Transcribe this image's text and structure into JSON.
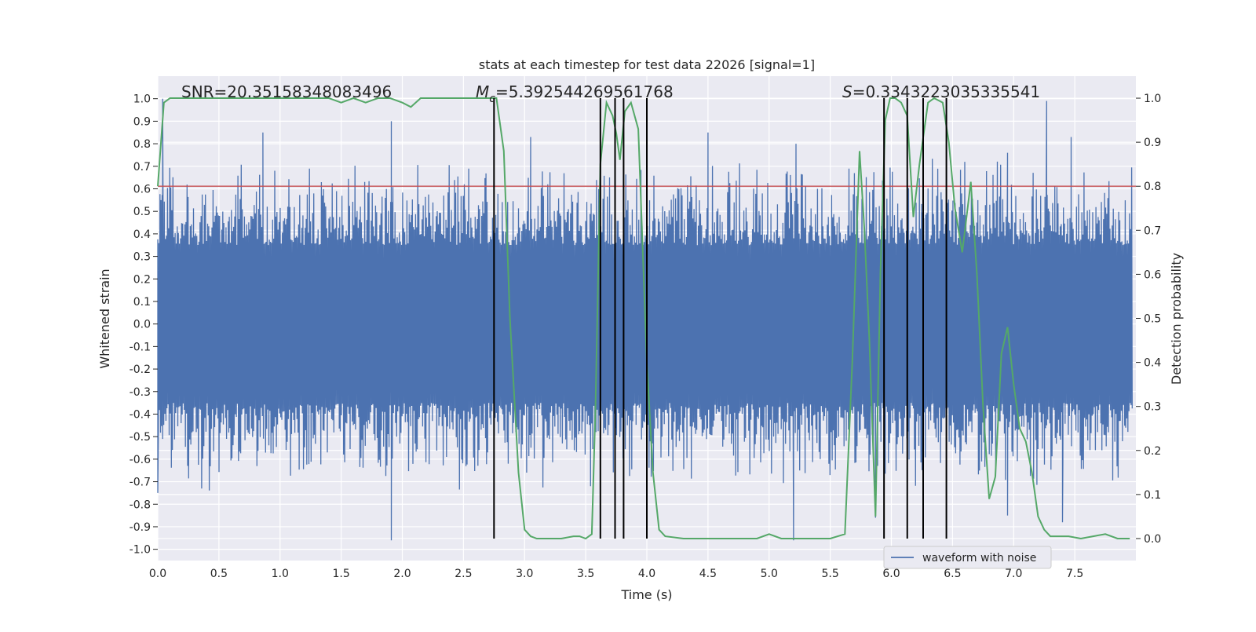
{
  "chart_data": {
    "type": "line",
    "title": "stats at each timestep for test data 22026 [signal=1]",
    "xlabel": "Time (s)",
    "ylabel": "Whitened strain",
    "y2label": "Detection probability",
    "xlim": [
      0.0,
      8.0
    ],
    "ylim": [
      -1.05,
      1.1
    ],
    "y2lim": [
      -0.05,
      1.05
    ],
    "x_ticks": [
      0.0,
      0.5,
      1.0,
      1.5,
      2.0,
      2.5,
      3.0,
      3.5,
      4.0,
      4.5,
      5.0,
      5.5,
      6.0,
      6.5,
      7.0,
      7.5
    ],
    "x_tick_labels": [
      "0.0",
      "0.5",
      "1.0",
      "1.5",
      "2.0",
      "2.5",
      "3.0",
      "3.5",
      "4.0",
      "4.5",
      "5.0",
      "5.5",
      "6.0",
      "6.5",
      "7.0",
      "7.5"
    ],
    "y_ticks": [
      1.0,
      0.9,
      0.8,
      0.7,
      0.6,
      0.5,
      0.4,
      0.3,
      0.2,
      0.1,
      0.0,
      -0.1,
      -0.2,
      -0.3,
      -0.4,
      -0.5,
      -0.6,
      -0.7,
      -0.8,
      -0.9,
      -1.0
    ],
    "y_tick_labels": [
      "1.0",
      "0.9",
      "0.8",
      "0.7",
      "0.6",
      "0.5",
      "0.4",
      "0.3",
      "0.2",
      "0.1",
      "0.0",
      "-0.1",
      "-0.2",
      "-0.3",
      "-0.4",
      "-0.5",
      "-0.6",
      "-0.7",
      "-0.8",
      "-0.9",
      "-1.0"
    ],
    "y2_ticks": [
      1.0,
      0.9,
      0.8,
      0.7,
      0.6,
      0.5,
      0.4,
      0.3,
      0.2,
      0.1,
      0.0
    ],
    "y2_tick_labels": [
      "1.0",
      "0.9",
      "0.8",
      "0.7",
      "0.6",
      "0.5",
      "0.4",
      "0.3",
      "0.2",
      "0.1",
      "0.0"
    ],
    "grid": true,
    "legend": {
      "label": "waveform with noise",
      "placement": "lower-right"
    },
    "annotations": {
      "snr": "SNR=20.35158348083496",
      "mc_symbol": "M",
      "mc_subscript": "c",
      "mc_value": "=5.392544269561768",
      "s_symbol": "S",
      "s_value": "=0.3343223035335541"
    },
    "threshold": {
      "value": 0.8,
      "color": "#c44e52",
      "axis": "y2"
    },
    "vertical_lines_x": [
      2.75,
      3.62,
      3.74,
      3.81,
      4.0,
      5.94,
      6.13,
      6.26,
      6.45
    ],
    "vertical_lines_color": "#000000",
    "waveform": {
      "name": "waveform with noise",
      "color": "#4c72b0",
      "samples": 1800,
      "core_amplitude": 0.35,
      "typical_spike_max": 0.75,
      "largest_peaks": [
        {
          "x": 0.04,
          "y": 1.0
        },
        {
          "x": 0.86,
          "y": 0.85
        },
        {
          "x": 1.91,
          "y": 0.9
        },
        {
          "x": 3.05,
          "y": 0.83
        },
        {
          "x": 4.5,
          "y": 0.85
        },
        {
          "x": 5.22,
          "y": 0.8
        },
        {
          "x": 6.6,
          "y": 0.72
        },
        {
          "x": 6.95,
          "y": 0.76
        },
        {
          "x": 7.27,
          "y": 0.99
        },
        {
          "x": 7.47,
          "y": 0.83
        }
      ],
      "largest_troughs": [
        {
          "x": 1.91,
          "y": -0.96
        },
        {
          "x": 5.2,
          "y": -0.96
        },
        {
          "x": 5.87,
          "y": -0.86
        },
        {
          "x": 7.4,
          "y": -0.88
        },
        {
          "x": 6.95,
          "y": -0.85
        },
        {
          "x": 0.0,
          "y": -0.75
        }
      ]
    },
    "probability": {
      "name": "detection probability",
      "color": "#55a868",
      "axis": "y2",
      "x": [
        0.0,
        0.05,
        0.1,
        0.2,
        0.4,
        0.6,
        0.8,
        1.0,
        1.2,
        1.4,
        1.5,
        1.6,
        1.7,
        1.8,
        1.9,
        2.0,
        2.07,
        2.15,
        2.25,
        2.4,
        2.55,
        2.7,
        2.77,
        2.83,
        2.88,
        2.95,
        3.0,
        3.05,
        3.1,
        3.2,
        3.3,
        3.4,
        3.45,
        3.5,
        3.55,
        3.58,
        3.62,
        3.67,
        3.72,
        3.75,
        3.78,
        3.82,
        3.87,
        3.93,
        4.0,
        4.05,
        4.1,
        4.15,
        4.3,
        4.5,
        4.7,
        4.9,
        5.0,
        5.1,
        5.2,
        5.3,
        5.5,
        5.62,
        5.68,
        5.74,
        5.78,
        5.82,
        5.87,
        5.91,
        5.95,
        5.99,
        6.03,
        6.08,
        6.13,
        6.18,
        6.23,
        6.3,
        6.35,
        6.42,
        6.47,
        6.52,
        6.58,
        6.65,
        6.7,
        6.75,
        6.8,
        6.85,
        6.9,
        6.95,
        7.0,
        7.05,
        7.1,
        7.15,
        7.2,
        7.25,
        7.3,
        7.35,
        7.45,
        7.55,
        7.65,
        7.75,
        7.85,
        7.95
      ],
      "y": [
        0.8,
        0.99,
        1.0,
        1.0,
        1.0,
        1.0,
        1.0,
        1.0,
        1.0,
        1.0,
        0.99,
        1.0,
        0.99,
        1.0,
        1.0,
        0.99,
        0.98,
        1.0,
        1.0,
        1.0,
        1.0,
        1.0,
        1.0,
        0.88,
        0.5,
        0.15,
        0.02,
        0.005,
        0.0,
        0.0,
        0.0,
        0.005,
        0.005,
        0.0,
        0.01,
        0.3,
        0.85,
        0.99,
        0.96,
        0.92,
        0.86,
        0.97,
        0.99,
        0.93,
        0.4,
        0.15,
        0.02,
        0.005,
        0.0,
        0.0,
        0.0,
        0.0,
        0.01,
        0.0,
        0.0,
        0.0,
        0.0,
        0.01,
        0.4,
        0.88,
        0.7,
        0.45,
        0.05,
        0.6,
        0.95,
        1.0,
        1.0,
        0.99,
        0.96,
        0.73,
        0.85,
        0.99,
        1.0,
        0.99,
        0.9,
        0.75,
        0.65,
        0.81,
        0.6,
        0.3,
        0.09,
        0.14,
        0.42,
        0.48,
        0.35,
        0.25,
        0.22,
        0.15,
        0.05,
        0.02,
        0.005,
        0.005,
        0.005,
        0.0,
        0.005,
        0.01,
        0.0,
        0.0
      ]
    }
  }
}
